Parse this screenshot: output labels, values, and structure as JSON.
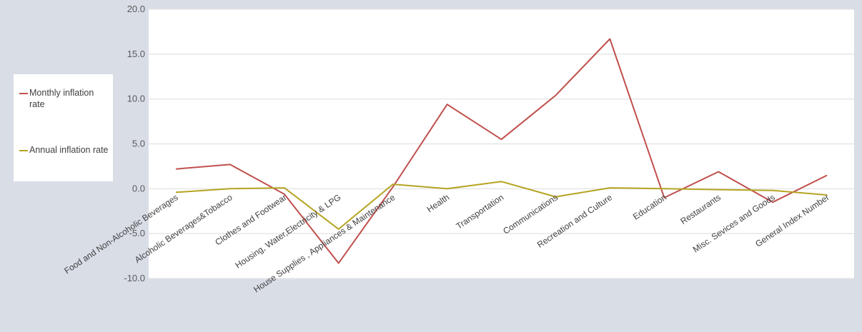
{
  "chart_data": {
    "type": "line",
    "categories": [
      "Food and Non-Alcoholic Beverages",
      "Alcoholic Beverages&Tobacco",
      "Clothes and Footwear",
      "Housing, Water,Electricity & LPG",
      "House Supplies , Appliances & Maintenance",
      "Health",
      "Transportation",
      "Communications",
      "Recreation and Culture",
      "Education",
      "Restaurants",
      "Misc. Sevices and Goods",
      "General Index Number"
    ],
    "series": [
      {
        "name": "Monthly inflation rate",
        "color": "#c0504d",
        "values": [
          2.2,
          2.7,
          -0.6,
          -8.3,
          0.2,
          9.4,
          5.5,
          10.4,
          16.7,
          -1.0,
          1.9,
          -1.5,
          1.5
        ]
      },
      {
        "name": "Annual inflation rate",
        "color": "#b5a423",
        "values": [
          -0.4,
          0.0,
          0.1,
          -4.5,
          0.5,
          0.0,
          0.8,
          -0.9,
          0.1,
          0.0,
          -0.1,
          -0.2,
          -0.7
        ]
      }
    ],
    "yticks": [
      "20.0",
      "15.0",
      "10.0",
      "5.0",
      "0.0",
      "-5.0",
      "-10.0"
    ],
    "ylim": [
      -10,
      20
    ],
    "grid": true,
    "legend_position": "left"
  }
}
